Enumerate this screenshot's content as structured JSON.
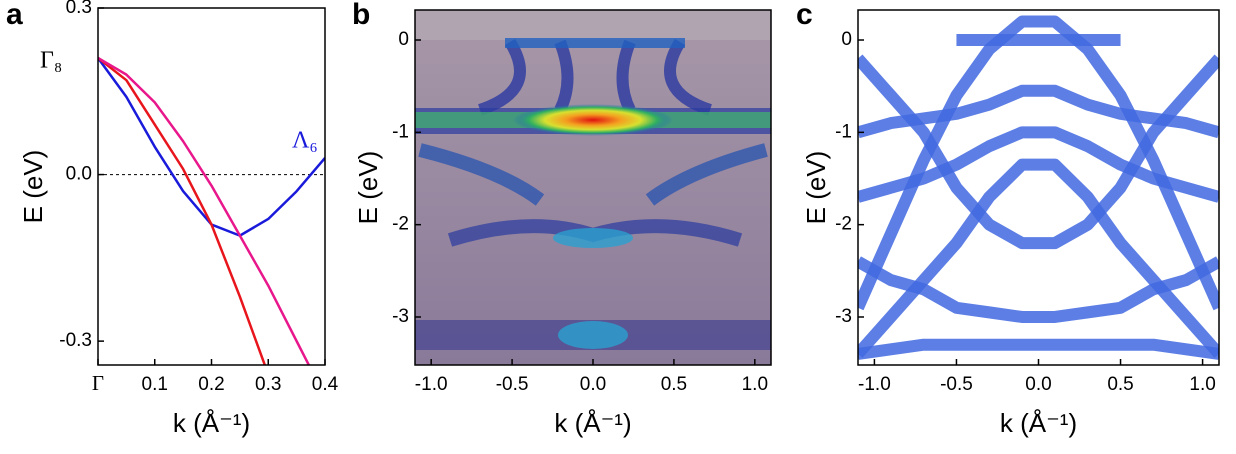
{
  "chart_data": [
    {
      "type": "line",
      "title": "a",
      "xlabel": "k (Å⁻¹)",
      "ylabel": "E (eV)",
      "annotations": [
        "Γ₈",
        "Λ₆"
      ],
      "x": [
        0,
        0.05,
        0.1,
        0.15,
        0.2,
        0.25,
        0.3,
        0.35,
        0.4
      ],
      "series": [
        {
          "color": "#1a1adb",
          "values": [
            0.21,
            0.14,
            0.05,
            -0.03,
            -0.09,
            -0.11,
            -0.08,
            -0.03,
            0.03
          ]
        },
        {
          "color": "#e8151c",
          "values": [
            0.21,
            0.17,
            0.09,
            0.01,
            -0.09,
            -0.22,
            -0.36,
            null,
            null
          ]
        },
        {
          "color": "#e8178c",
          "values": [
            0.21,
            0.18,
            0.13,
            0.06,
            -0.02,
            -0.11,
            -0.2,
            -0.3,
            -0.4
          ]
        }
      ],
      "hlines": [
        0
      ],
      "xlim": [
        0,
        0.4
      ],
      "ylim": [
        -0.343,
        0.3
      ],
      "xticks": [
        {
          "value": 0,
          "label": "Γ"
        },
        0.1,
        0.2,
        0.3,
        0.4
      ],
      "yticks": [
        {
          "value": 0.3,
          "label": "0.3"
        },
        {
          "value": 0,
          "label": "0.0"
        },
        {
          "value": -0.3,
          "label": "-0.3"
        }
      ]
    },
    {
      "type": "image",
      "title": "b",
      "xlabel": "k (Å⁻¹)",
      "ylabel": "E (eV)",
      "xlim": [
        -1.1,
        1.1
      ],
      "ylim": [
        -3.52,
        0.325
      ],
      "xticks": [
        {
          "value": -1,
          "label": "-1.0"
        },
        -0.5,
        {
          "value": 0,
          "label": "0.0"
        },
        0.5,
        {
          "value": 1,
          "label": "1.0"
        }
      ],
      "yticks": [
        0,
        -1,
        -2,
        -3
      ]
    },
    {
      "type": "line",
      "title": "c",
      "xlabel": "k (Å⁻¹)",
      "ylabel": "E (eV)",
      "x": [
        -1.1,
        -0.9,
        -0.7,
        -0.5,
        -0.3,
        -0.1,
        0.1,
        0.3,
        0.5,
        0.7,
        0.9,
        1.1
      ],
      "series": [
        {
          "color": "#4169e1",
          "values": [
            -2.9,
            -2.1,
            -1.3,
            -0.6,
            -0.1,
            0.2,
            0.2,
            -0.1,
            -0.6,
            -1.3,
            -2.1,
            -2.9
          ]
        },
        {
          "color": "#4169e1",
          "values": [
            -3.4,
            -3.0,
            -2.6,
            -2.2,
            -1.7,
            -1.35,
            -1.35,
            -1.7,
            -2.2,
            -2.6,
            -3.0,
            -3.4
          ]
        },
        {
          "color": "#4169e1",
          "values": [
            -1.0,
            -0.9,
            -0.85,
            -0.8,
            -0.7,
            -0.55,
            -0.55,
            -0.7,
            -0.8,
            -0.85,
            -0.9,
            -1.0
          ]
        },
        {
          "color": "#4169e1",
          "values": [
            -1.7,
            -1.6,
            -1.5,
            -1.35,
            -1.15,
            -1.0,
            -1.0,
            -1.15,
            -1.35,
            -1.5,
            -1.6,
            -1.7
          ]
        },
        {
          "color": "#4169e1",
          "values": [
            -2.4,
            -2.6,
            -2.7,
            -2.9,
            -2.95,
            -3.0,
            -3.0,
            -2.95,
            -2.9,
            -2.7,
            -2.6,
            -2.4
          ]
        },
        {
          "color": "#4169e1",
          "values": [
            -3.4,
            -3.35,
            -3.3,
            -3.3,
            -3.3,
            -3.3,
            -3.3,
            -3.3,
            -3.3,
            -3.3,
            -3.35,
            -3.4
          ]
        },
        {
          "color": "#4169e1",
          "values": [
            null,
            null,
            null,
            0,
            0,
            0,
            0,
            0,
            0,
            null,
            null,
            null
          ]
        },
        {
          "color": "#4169e1",
          "values": [
            -0.2,
            -0.6,
            -1.0,
            -1.6,
            -2.0,
            -2.2,
            -2.2,
            -2.0,
            -1.6,
            -1.0,
            -0.6,
            -0.2
          ]
        }
      ],
      "xlim": [
        -1.1,
        1.1
      ],
      "ylim": [
        -3.52,
        0.325
      ],
      "xticks": [
        {
          "value": -1,
          "label": "-1.0"
        },
        -0.5,
        {
          "value": 0,
          "label": "0.0"
        },
        0.5,
        {
          "value": 1,
          "label": "1.0"
        }
      ],
      "yticks": [
        0,
        -1,
        -2,
        -3
      ]
    }
  ]
}
